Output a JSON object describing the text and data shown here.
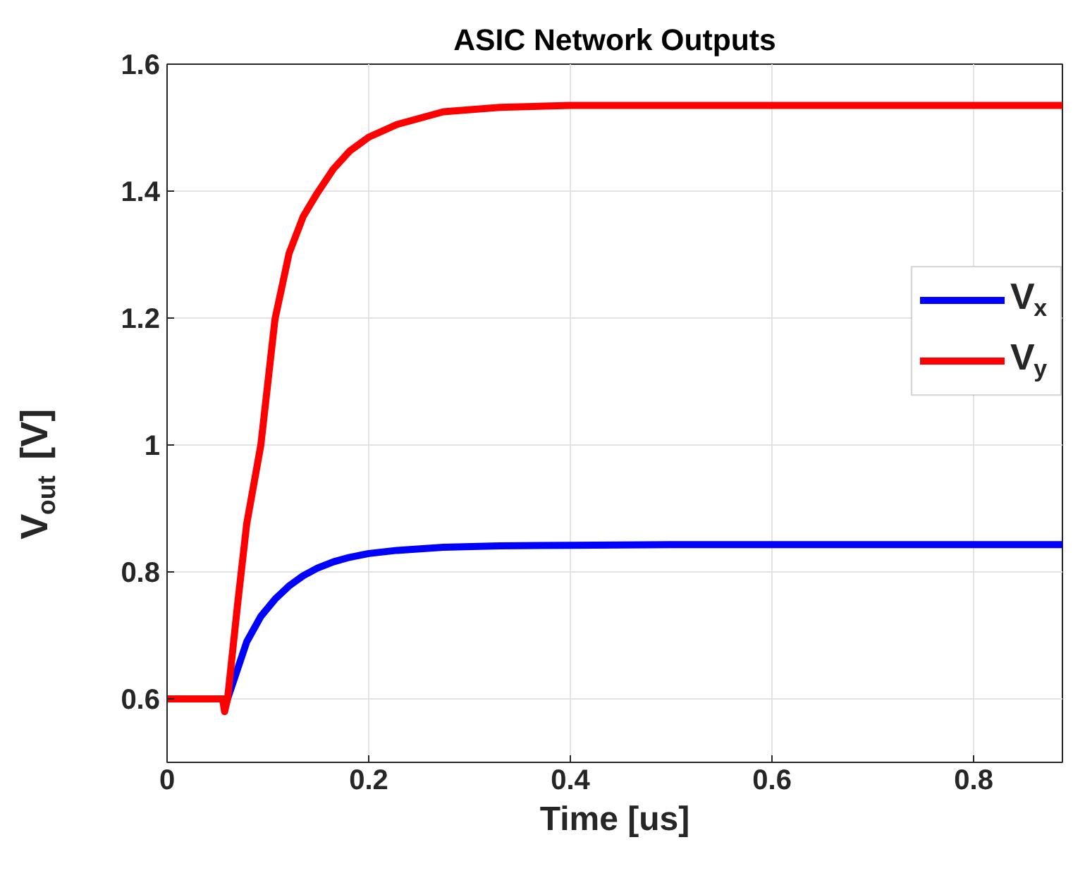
{
  "chart_data": {
    "type": "line",
    "title": "ASIC Network Outputs",
    "xlabel": "Time [us]",
    "ylabel": "V$_{out}$ [V]",
    "xlim": [
      0,
      0.888
    ],
    "ylim": [
      0.5,
      1.6
    ],
    "xticks": [
      0,
      0.2,
      0.4,
      0.6,
      0.8
    ],
    "yticks": [
      0.6,
      0.8,
      1,
      1.2,
      1.4,
      1.6
    ],
    "grid": true,
    "legend": "right",
    "line_style": "solid",
    "series": [
      {
        "name": "V$_{x}$",
        "color": "#0000ff",
        "x": [
          0,
          0.06,
          0.079,
          0.093,
          0.107,
          0.121,
          0.135,
          0.149,
          0.165,
          0.181,
          0.2,
          0.228,
          0.274,
          0.33,
          0.4,
          0.5,
          0.6,
          0.7,
          0.888
        ],
        "values": [
          0.6,
          0.6,
          0.69,
          0.73,
          0.757,
          0.778,
          0.794,
          0.806,
          0.816,
          0.823,
          0.829,
          0.834,
          0.839,
          0.841,
          0.842,
          0.843,
          0.843,
          0.843,
          0.843
        ]
      },
      {
        "name": "V$_{y}$",
        "color": "#ff0000",
        "x": [
          0,
          0.055,
          0.057,
          0.06,
          0.07,
          0.079,
          0.093,
          0.107,
          0.121,
          0.135,
          0.149,
          0.165,
          0.181,
          0.2,
          0.228,
          0.274,
          0.33,
          0.4,
          0.5,
          0.6,
          0.7,
          0.888
        ],
        "values": [
          0.6,
          0.6,
          0.58,
          0.6,
          0.75,
          0.876,
          1.0,
          1.198,
          1.302,
          1.36,
          1.397,
          1.435,
          1.463,
          1.485,
          1.505,
          1.525,
          1.532,
          1.535,
          1.535,
          1.535,
          1.535,
          1.535
        ]
      }
    ]
  }
}
